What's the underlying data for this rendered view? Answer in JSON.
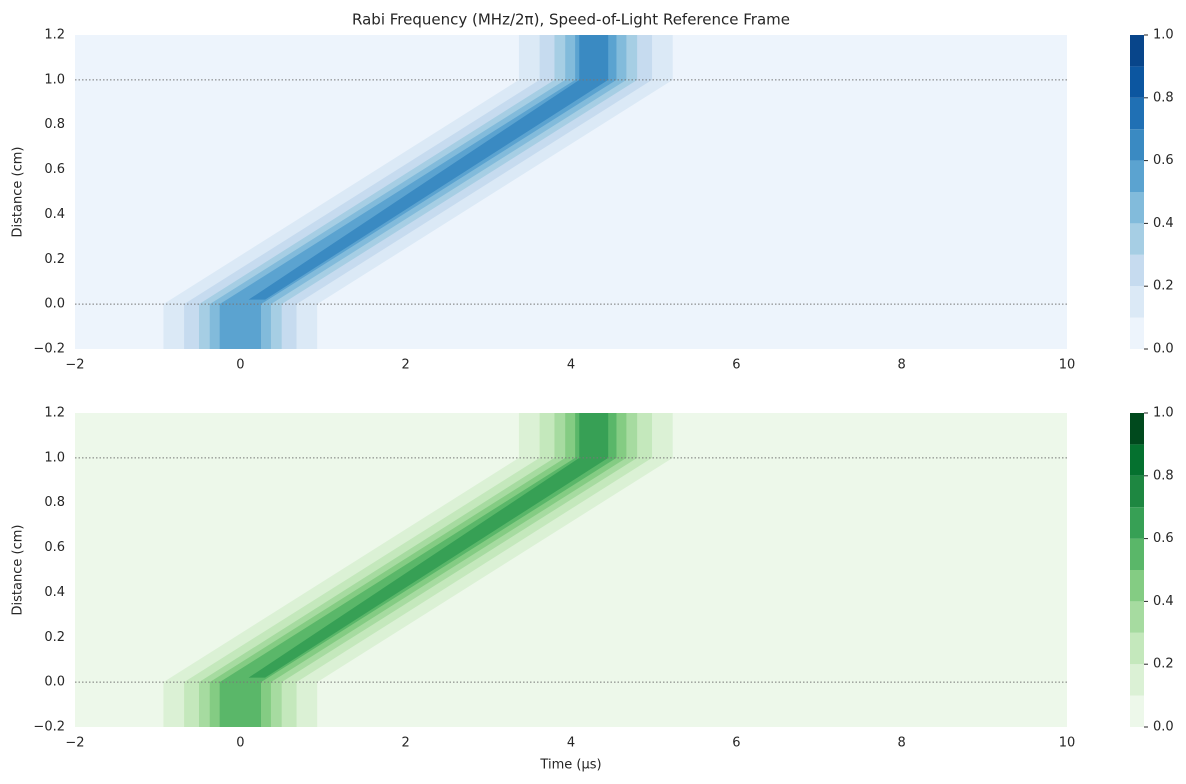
{
  "chart_data": [
    {
      "type": "contourf",
      "title": "Rabi Frequency (MHz/2π), Speed-of-Light Reference Frame",
      "ylabel": "Distance (cm)",
      "xlim": [
        -2,
        10
      ],
      "xticks": [
        {
          "value": -2,
          "label": "−2"
        },
        0,
        2,
        4,
        6,
        8,
        10
      ],
      "ylim": [
        -0.2,
        1.2
      ],
      "yticks": [
        {
          "value": -0.2,
          "label": "−0.2"
        },
        {
          "value": 0,
          "label": "0.0"
        },
        {
          "value": 0.2,
          "label": "0.2"
        },
        {
          "value": 0.4,
          "label": "0.4"
        },
        {
          "value": 0.6,
          "label": "0.6"
        },
        {
          "value": 0.8,
          "label": "0.8"
        },
        {
          "value": 1,
          "label": "1.0"
        },
        {
          "value": 1.2,
          "label": "1.2"
        }
      ],
      "hlines": [
        0,
        1
      ],
      "levels": [
        0,
        0.1,
        0.2,
        0.3,
        0.4,
        0.5,
        0.6,
        0.7,
        0.8,
        0.9,
        1
      ],
      "colors": [
        "#edf4fc",
        "#dbe9f6",
        "#c6dbef",
        "#a6cee4",
        "#82bbdb",
        "#5ba3d0",
        "#3a8ac2",
        "#2070b4",
        "#0c56a0",
        "#08458a"
      ],
      "cticks": [
        {
          "value": 0,
          "label": "0.0"
        },
        {
          "value": 0.2,
          "label": "0.2"
        },
        {
          "value": 0.4,
          "label": "0.4"
        },
        {
          "value": 0.6,
          "label": "0.6"
        },
        {
          "value": 0.8,
          "label": "0.8"
        },
        {
          "value": 1,
          "label": "1.0"
        }
      ],
      "contours": [
        {
          "level": 0.1,
          "x": [
            -0.93,
            -0.93,
            3.37,
            3.37,
            5.23,
            5.23,
            0.93,
            0.93
          ],
          "y": [
            -0.2,
            0,
            1,
            1.2,
            1.2,
            1,
            0,
            -0.2
          ]
        },
        {
          "level": 0.2,
          "x": [
            -0.68,
            -0.68,
            3.62,
            3.62,
            4.98,
            4.98,
            0.68,
            0.68
          ],
          "y": [
            -0.2,
            0,
            1,
            1.2,
            1.2,
            1,
            0,
            -0.2
          ]
        },
        {
          "level": 0.3,
          "x": [
            -0.5,
            -0.5,
            3.8,
            3.8,
            4.8,
            4.8,
            0.5,
            0.5
          ],
          "y": [
            -0.2,
            0,
            1,
            1.2,
            1.2,
            1,
            0,
            -0.2
          ]
        },
        {
          "level": 0.4,
          "x": [
            -0.37,
            -0.37,
            3.93,
            3.93,
            4.67,
            4.67,
            0.37,
            0.37
          ],
          "y": [
            -0.2,
            0,
            1,
            1.2,
            1.2,
            1,
            0,
            -0.2
          ]
        },
        {
          "level": 0.5,
          "x": [
            -0.25,
            -0.25,
            4.05,
            4.05,
            4.55,
            4.55,
            0.25,
            0.25
          ],
          "y": [
            -0.2,
            0,
            1,
            1.2,
            1.2,
            1,
            0,
            -0.2
          ]
        },
        {
          "level": 0.6,
          "x": [
            0.1,
            4.1,
            4.1,
            4.45,
            4.45,
            0.3
          ],
          "y": [
            0.02,
            1,
            1.2,
            1.2,
            1,
            0.02
          ]
        }
      ]
    },
    {
      "type": "contourf",
      "ylabel": "Distance (cm)",
      "xlabel": "Time (μs)",
      "xlim": [
        -2,
        10
      ],
      "xticks": [
        {
          "value": -2,
          "label": "−2"
        },
        0,
        2,
        4,
        6,
        8,
        10
      ],
      "ylim": [
        -0.2,
        1.2
      ],
      "yticks": [
        {
          "value": -0.2,
          "label": "−0.2"
        },
        {
          "value": 0,
          "label": "0.0"
        },
        {
          "value": 0.2,
          "label": "0.2"
        },
        {
          "value": 0.4,
          "label": "0.4"
        },
        {
          "value": 0.6,
          "label": "0.6"
        },
        {
          "value": 0.8,
          "label": "0.8"
        },
        {
          "value": 1,
          "label": "1.0"
        },
        {
          "value": 1.2,
          "label": "1.2"
        }
      ],
      "hlines": [
        0,
        1
      ],
      "levels": [
        0,
        0.1,
        0.2,
        0.3,
        0.4,
        0.5,
        0.6,
        0.7,
        0.8,
        0.9,
        1
      ],
      "colors": [
        "#edf8ea",
        "#dbf1d5",
        "#c4e8bc",
        "#a6dba0",
        "#84cc83",
        "#5ab769",
        "#37a055",
        "#1e8741",
        "#05712f",
        "#00491d"
      ],
      "cticks": [
        {
          "value": 0,
          "label": "0.0"
        },
        {
          "value": 0.2,
          "label": "0.2"
        },
        {
          "value": 0.4,
          "label": "0.4"
        },
        {
          "value": 0.6,
          "label": "0.6"
        },
        {
          "value": 0.8,
          "label": "0.8"
        },
        {
          "value": 1,
          "label": "1.0"
        }
      ],
      "contours": [
        {
          "level": 0.1,
          "x": [
            -0.93,
            -0.93,
            3.37,
            3.37,
            5.23,
            5.23,
            0.93,
            0.93
          ],
          "y": [
            -0.2,
            0,
            1,
            1.2,
            1.2,
            1,
            0,
            -0.2
          ]
        },
        {
          "level": 0.2,
          "x": [
            -0.68,
            -0.68,
            3.62,
            3.62,
            4.98,
            4.98,
            0.68,
            0.68
          ],
          "y": [
            -0.2,
            0,
            1,
            1.2,
            1.2,
            1,
            0,
            -0.2
          ]
        },
        {
          "level": 0.3,
          "x": [
            -0.5,
            -0.5,
            3.8,
            3.8,
            4.8,
            4.8,
            0.5,
            0.5
          ],
          "y": [
            -0.2,
            0,
            1,
            1.2,
            1.2,
            1,
            0,
            -0.2
          ]
        },
        {
          "level": 0.4,
          "x": [
            -0.37,
            -0.37,
            3.93,
            3.93,
            4.67,
            4.67,
            0.37,
            0.37
          ],
          "y": [
            -0.2,
            0,
            1,
            1.2,
            1.2,
            1,
            0,
            -0.2
          ]
        },
        {
          "level": 0.5,
          "x": [
            -0.25,
            -0.25,
            4.05,
            4.05,
            4.55,
            4.55,
            0.25,
            0.25
          ],
          "y": [
            -0.2,
            0,
            1,
            1.2,
            1.2,
            1,
            0,
            -0.2
          ]
        },
        {
          "level": 0.6,
          "x": [
            0.1,
            4.1,
            4.1,
            4.45,
            4.45,
            0.3
          ],
          "y": [
            0.02,
            1,
            1.2,
            1.2,
            1,
            0.02
          ]
        }
      ]
    }
  ]
}
